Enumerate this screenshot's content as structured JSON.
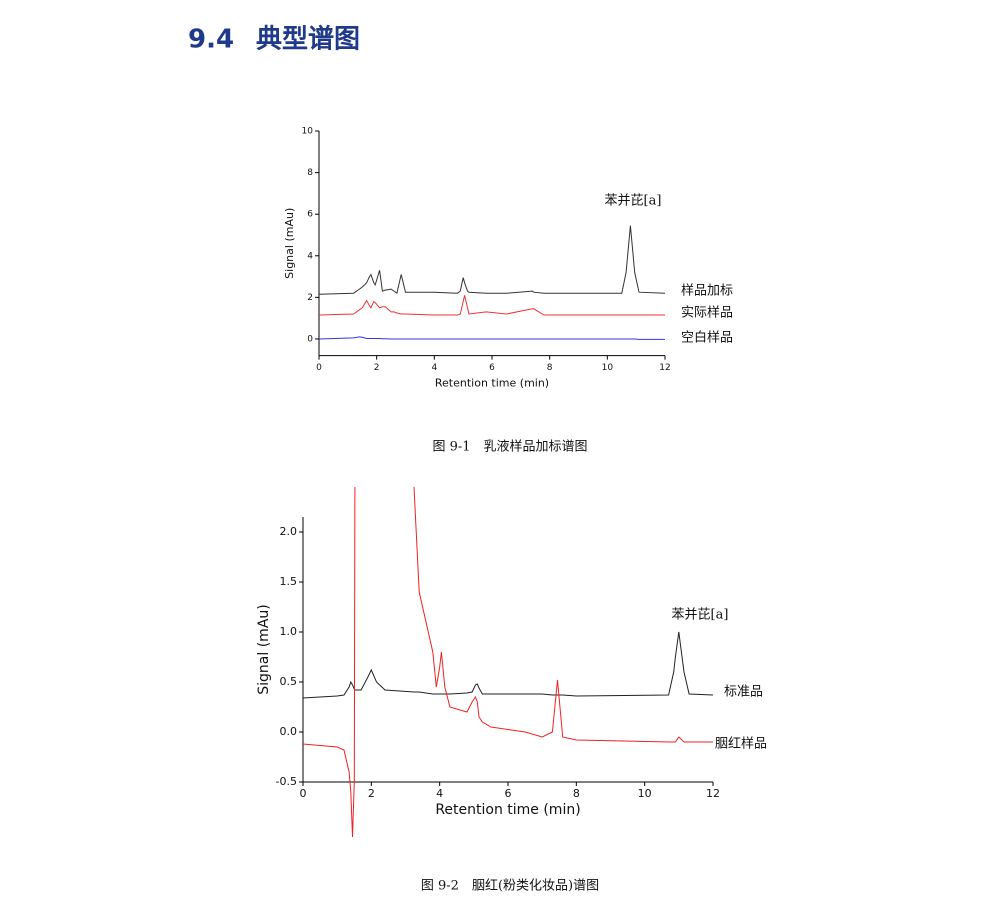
{
  "heading": {
    "number": "9.4",
    "title": "典型谱图"
  },
  "chart_data": [
    {
      "type": "line",
      "caption": "图 9-1　乳液样品加标谱图",
      "annotation": "苯并芘[a]",
      "xlabel": "Retention time (min)",
      "ylabel": "Signal (mAu)",
      "xlim": [
        0,
        12
      ],
      "xticks": [
        0,
        2,
        4,
        6,
        8,
        10,
        12
      ],
      "ylim": [
        -0.8,
        10
      ],
      "yticks": [
        0,
        2,
        4,
        6,
        8,
        10
      ],
      "x": [
        0,
        1.2,
        1.4,
        1.5,
        1.65,
        1.75,
        1.8,
        1.9,
        1.95,
        2.1,
        2.2,
        2.3,
        2.5,
        2.6,
        2.7,
        2.85,
        3.0,
        4.0,
        4.8,
        4.9,
        5.0,
        5.05,
        5.15,
        5.2,
        5.8,
        6.5,
        7.4,
        7.45,
        7.8,
        10.5,
        10.65,
        10.8,
        10.95,
        11.1,
        12
      ],
      "series": [
        {
          "name": "样品加标",
          "color": "#333333",
          "values": [
            2.15,
            2.2,
            2.4,
            2.5,
            2.7,
            3.0,
            3.1,
            2.7,
            2.6,
            3.3,
            2.3,
            2.35,
            2.4,
            2.3,
            2.2,
            3.1,
            2.25,
            2.25,
            2.2,
            2.3,
            2.95,
            2.7,
            2.3,
            2.25,
            2.2,
            2.2,
            2.3,
            2.25,
            2.2,
            2.2,
            3.2,
            5.45,
            3.2,
            2.25,
            2.2
          ]
        },
        {
          "name": "实际样品",
          "color": "#ee3333",
          "values": [
            1.15,
            1.2,
            1.4,
            1.5,
            1.85,
            1.6,
            1.5,
            1.8,
            1.75,
            1.5,
            1.55,
            1.55,
            1.3,
            1.3,
            1.25,
            1.2,
            1.2,
            1.15,
            1.15,
            1.2,
            1.8,
            2.1,
            1.5,
            1.2,
            1.3,
            1.2,
            1.45,
            1.45,
            1.15,
            1.15,
            1.15,
            1.15,
            1.15,
            1.15,
            1.15
          ]
        },
        {
          "name": "空白样品",
          "color": "#3333ee",
          "values": [
            0,
            0.05,
            0.1,
            0.08,
            0.02,
            0.02,
            0.02,
            0.02,
            0.02,
            0.02,
            0.01,
            0.01,
            0,
            0,
            0,
            0,
            0,
            0,
            0,
            0,
            0,
            0,
            0,
            0,
            0,
            0,
            0,
            0,
            0,
            0,
            0,
            0,
            0,
            -0.02,
            -0.02
          ]
        }
      ]
    },
    {
      "type": "line",
      "caption": "图 9-2　胭红(粉类化妆品)谱图",
      "annotation": "苯并芘[a]",
      "xlabel": "Retention time (min)",
      "ylabel": "Signal (mAu)",
      "xlim": [
        0,
        12
      ],
      "xticks": [
        0,
        2,
        4,
        6,
        8,
        10,
        12
      ],
      "ylim": [
        -0.5,
        2.15
      ],
      "yticks": [
        -0.5,
        {
          "value": 0,
          "label": "0.0"
        },
        0.5,
        {
          "value": 1,
          "label": "1.0"
        },
        1.5,
        {
          "value": 2,
          "label": "2.0"
        }
      ],
      "x": [
        0,
        1.0,
        1.2,
        1.35,
        1.4,
        1.45,
        1.5,
        1.52,
        1.55,
        1.6,
        1.7,
        1.9,
        2.0,
        2.15,
        2.4,
        3.25,
        3.4,
        3.6,
        3.8,
        3.9,
        4.0,
        4.05,
        4.15,
        4.3,
        4.8,
        4.95,
        5.05,
        5.1,
        5.15,
        5.25,
        5.5,
        6.5,
        7.0,
        7.3,
        7.45,
        7.6,
        8.0,
        10.7,
        10.85,
        10.9,
        11.0,
        11.15,
        11.3,
        12
      ],
      "series": [
        {
          "name": "标准品",
          "color": "#222222",
          "values": [
            0.34,
            0.36,
            0.37,
            0.45,
            0.5,
            0.47,
            0.43,
            0.42,
            0.42,
            0.42,
            0.42,
            0.55,
            0.62,
            0.5,
            0.42,
            0.4,
            0.4,
            0.39,
            0.38,
            0.38,
            0.38,
            0.38,
            0.38,
            0.38,
            0.39,
            0.4,
            0.47,
            0.48,
            0.44,
            0.38,
            0.38,
            0.38,
            0.38,
            0.37,
            0.37,
            0.37,
            0.36,
            0.37,
            0.6,
            0.75,
            1.0,
            0.6,
            0.38,
            0.37
          ]
        },
        {
          "name": "胭红样品",
          "color": "#ee2222",
          "values": [
            -0.12,
            -0.15,
            -0.18,
            -0.4,
            -0.6,
            -1.05,
            -0.5,
            2.45,
            null,
            null,
            null,
            null,
            null,
            null,
            null,
            2.45,
            1.4,
            1.1,
            0.8,
            0.45,
            0.65,
            0.8,
            0.45,
            0.25,
            0.2,
            0.3,
            0.35,
            0.3,
            0.15,
            0.1,
            0.05,
            0.0,
            -0.05,
            0.0,
            0.52,
            -0.05,
            -0.08,
            -0.1,
            -0.1,
            -0.1,
            -0.05,
            -0.1,
            -0.1,
            -0.1
          ]
        }
      ]
    }
  ]
}
